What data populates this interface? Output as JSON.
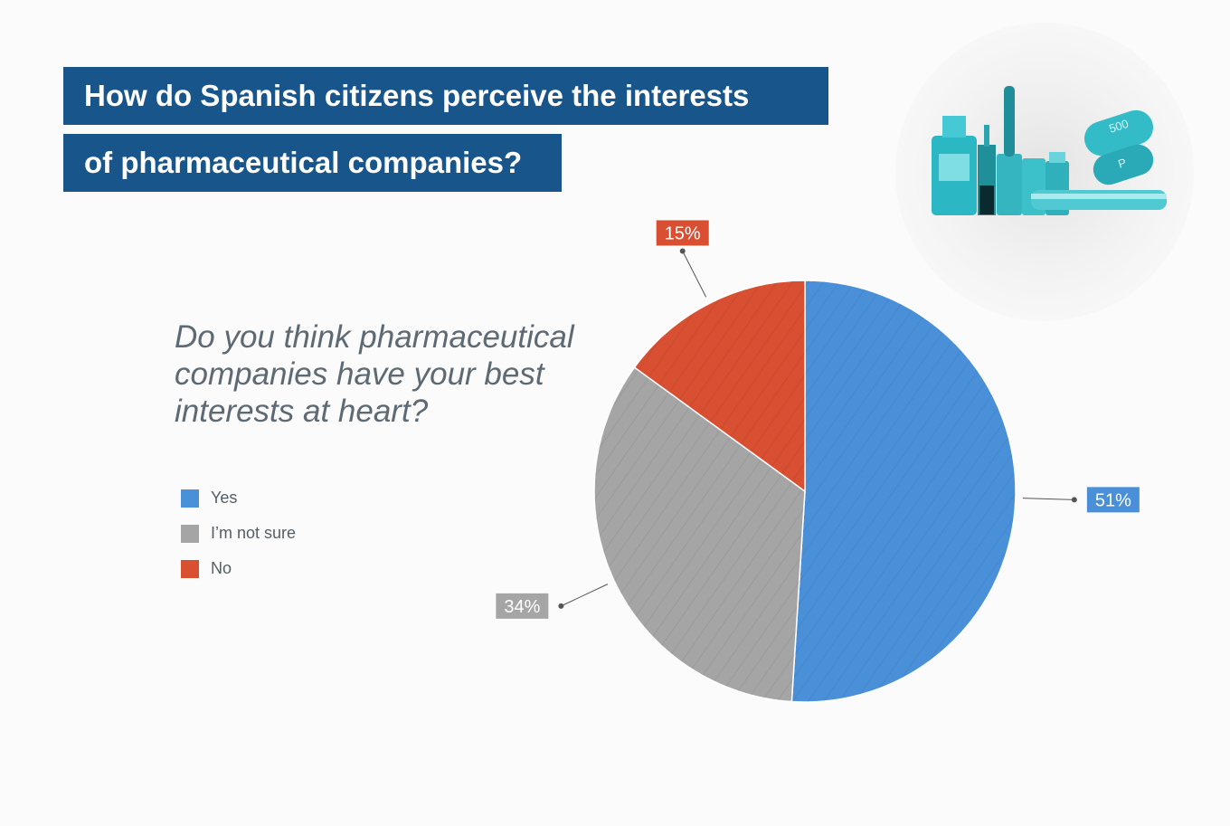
{
  "header": {
    "title_line1": "How do Spanish citizens perceive the interests",
    "title_line2": "of pharmaceutical companies?"
  },
  "question": "Do you think pharmaceutical companies have your best interests at heart?",
  "legend": [
    {
      "label": "Yes",
      "color": "#4a90d9"
    },
    {
      "label": "I’m not sure",
      "color": "#a5a5a5"
    },
    {
      "label": "No",
      "color": "#d94f31"
    }
  ],
  "chart_data": {
    "type": "pie",
    "categories": [
      "Yes",
      "I’m not sure",
      "No"
    ],
    "values": [
      51,
      34,
      15
    ],
    "data_labels": [
      "51%",
      "34%",
      "15%"
    ],
    "colors": [
      "#4a90d9",
      "#a5a5a5",
      "#d94f31"
    ],
    "start": "12 o'clock, clockwise",
    "legend_position": "left"
  },
  "colors": {
    "title_bg": "#17558a",
    "title_text": "#ffffff",
    "question_text": "#5e6a73"
  },
  "illustration": {
    "icon": "pharmaceutical-vials-pills-icon",
    "pill_text": [
      "500",
      "P"
    ]
  }
}
